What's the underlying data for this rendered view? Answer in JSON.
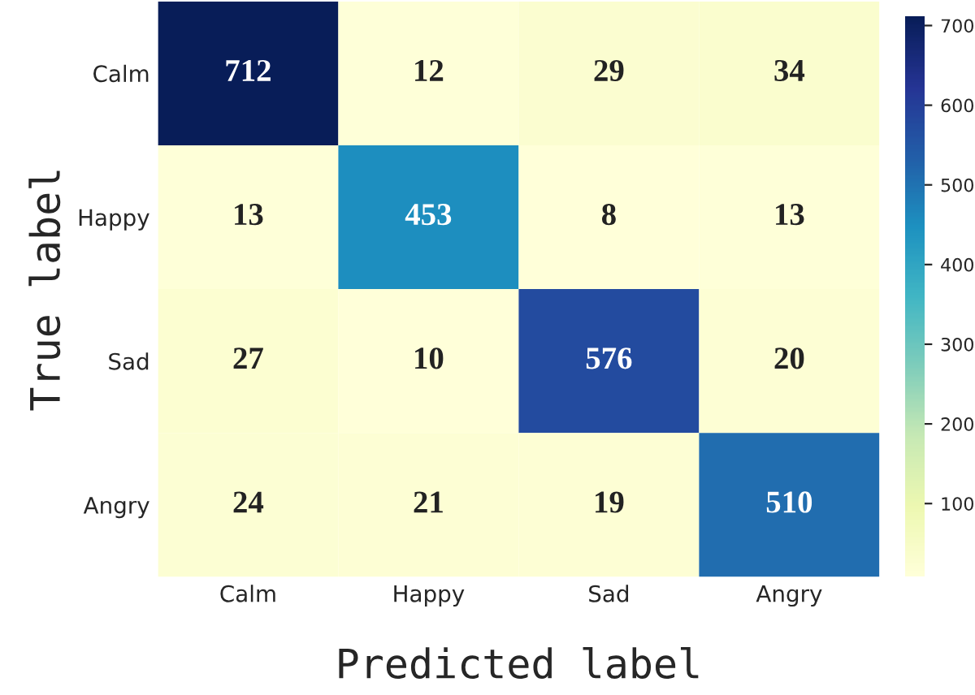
{
  "chart_data": {
    "type": "heatmap",
    "xlabel": "Predicted label",
    "ylabel": "True label",
    "categories": [
      "Calm",
      "Happy",
      "Sad",
      "Angry"
    ],
    "y_categories": [
      "Calm",
      "Happy",
      "Sad",
      "Angry"
    ],
    "cells": [
      [
        712,
        12,
        29,
        34
      ],
      [
        13,
        453,
        8,
        13
      ],
      [
        27,
        10,
        576,
        20
      ],
      [
        24,
        21,
        19,
        510
      ]
    ],
    "clim": [
      8,
      712
    ],
    "cticks": [
      100,
      200,
      300,
      400,
      500,
      600,
      700
    ],
    "data_labels": true
  }
}
